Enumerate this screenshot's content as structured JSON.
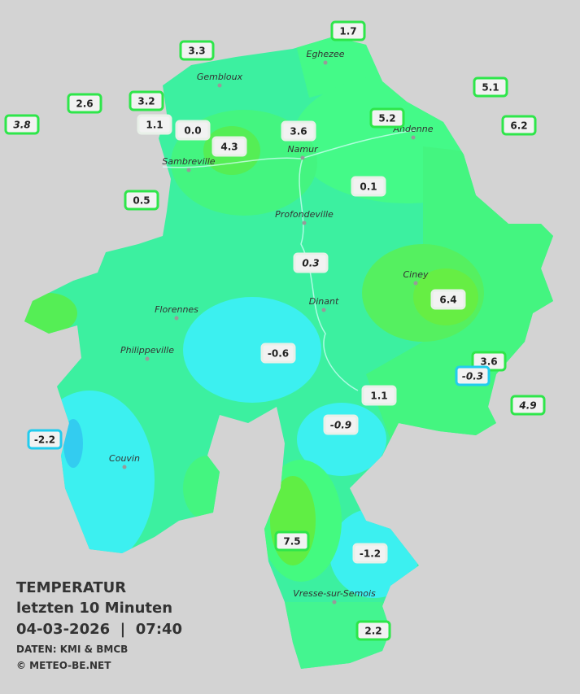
{
  "caption": {
    "title": "TEMPERATUR",
    "period": "letzten 10 Minuten",
    "datetime": "04-03-2026  |  07:40",
    "source": "DATEN: KMI & BMCB",
    "copyright": "© METEO-BE.NET"
  },
  "towns": [
    "Eghezee",
    "Gembloux",
    "Andenne",
    "Namur",
    "Sambreville",
    "Profondeville",
    "Ciney",
    "Florennes",
    "Dinant",
    "Philippeville",
    "Couvin",
    "Vresse-sur-Semois"
  ],
  "stations": [
    "3.3",
    "1.7",
    "5.1",
    "2.6",
    "3.2",
    "1.1",
    "0.0",
    "4.3",
    "3.6",
    "5.2",
    "6.2",
    "3.8",
    "0.5",
    "0.1",
    "0.3",
    "6.4",
    "-0.6",
    "3.6",
    "-0.3",
    "4.9",
    "1.1",
    "-0.9",
    "-2.2",
    "7.5",
    "-1.2",
    "2.2"
  ]
}
